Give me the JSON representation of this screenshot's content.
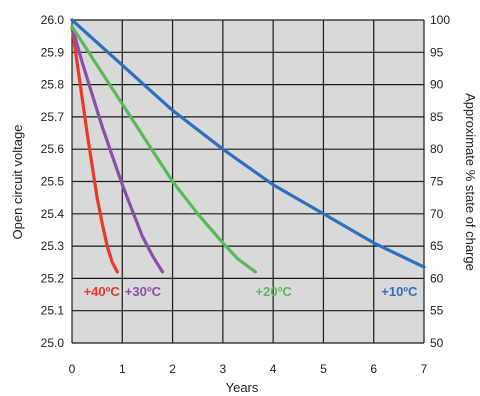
{
  "chart_data": {
    "type": "line",
    "x_axis": {
      "label": "Years",
      "range": [
        0,
        7
      ],
      "ticks": [
        0,
        1,
        2,
        3,
        4,
        5,
        6,
        7
      ],
      "tick_labels": [
        "0",
        "1",
        "2",
        "3",
        "4",
        "5",
        "6",
        "7"
      ]
    },
    "y_axis_left": {
      "label": "Open circuit voltage",
      "range": [
        25.0,
        26.0
      ],
      "ticks": [
        25.0,
        25.1,
        25.2,
        25.3,
        25.4,
        25.5,
        25.6,
        25.7,
        25.8,
        25.9,
        26.0
      ],
      "tick_labels": [
        "25.0",
        "25.1",
        "25.2",
        "25.3",
        "25.4",
        "25.5",
        "25.6",
        "25.7",
        "25.8",
        "25.9",
        "26.0"
      ]
    },
    "y_axis_right": {
      "label": "Approximate % state of charge",
      "range": [
        50,
        100
      ],
      "ticks": [
        50,
        55,
        60,
        65,
        70,
        75,
        80,
        85,
        90,
        95,
        100
      ],
      "tick_labels": [
        "50",
        "55",
        "60",
        "65",
        "70",
        "75",
        "80",
        "85",
        "90",
        "95",
        "100"
      ]
    },
    "grid": true,
    "plot_background": "#d9d9d9",
    "grid_color": "#1a1a1a",
    "series": [
      {
        "name": "+40ºC",
        "color": "#e8392b",
        "x": [
          0,
          0.1,
          0.2,
          0.3,
          0.4,
          0.5,
          0.6,
          0.7,
          0.8,
          0.9
        ],
        "y": [
          25.98,
          25.87,
          25.76,
          25.65,
          25.55,
          25.45,
          25.37,
          25.3,
          25.25,
          25.22
        ]
      },
      {
        "name": "+30ºC",
        "color": "#8a4fa8",
        "x": [
          0,
          0.2,
          0.4,
          0.6,
          0.8,
          1.0,
          1.2,
          1.4,
          1.6,
          1.8
        ],
        "y": [
          25.98,
          25.87,
          25.77,
          25.67,
          25.58,
          25.49,
          25.41,
          25.33,
          25.27,
          25.22
        ]
      },
      {
        "name": "+20ºC",
        "color": "#5cb85c",
        "x": [
          0,
          0.5,
          1.0,
          1.5,
          2.0,
          2.5,
          3.0,
          3.3,
          3.65
        ],
        "y": [
          25.98,
          25.86,
          25.74,
          25.62,
          25.5,
          25.4,
          25.31,
          25.26,
          25.22
        ]
      },
      {
        "name": "+10ºC",
        "color": "#2e6fbf",
        "x": [
          0,
          1,
          2,
          3,
          4,
          5,
          6,
          7
        ],
        "y": [
          26.0,
          25.86,
          25.72,
          25.6,
          25.49,
          25.4,
          25.31,
          25.235
        ]
      }
    ],
    "series_labels": [
      {
        "text": "+40ºC",
        "color": "#e8392b",
        "x": 0.23,
        "y": 25.145
      },
      {
        "text": "+30ºC",
        "color": "#8a4fa8",
        "x": 1.05,
        "y": 25.145
      },
      {
        "text": "+20ºC",
        "color": "#5cb85c",
        "x": 3.65,
        "y": 25.145
      },
      {
        "text": "+10ºC",
        "color": "#2e6fbf",
        "x": 6.15,
        "y": 25.145
      }
    ]
  }
}
